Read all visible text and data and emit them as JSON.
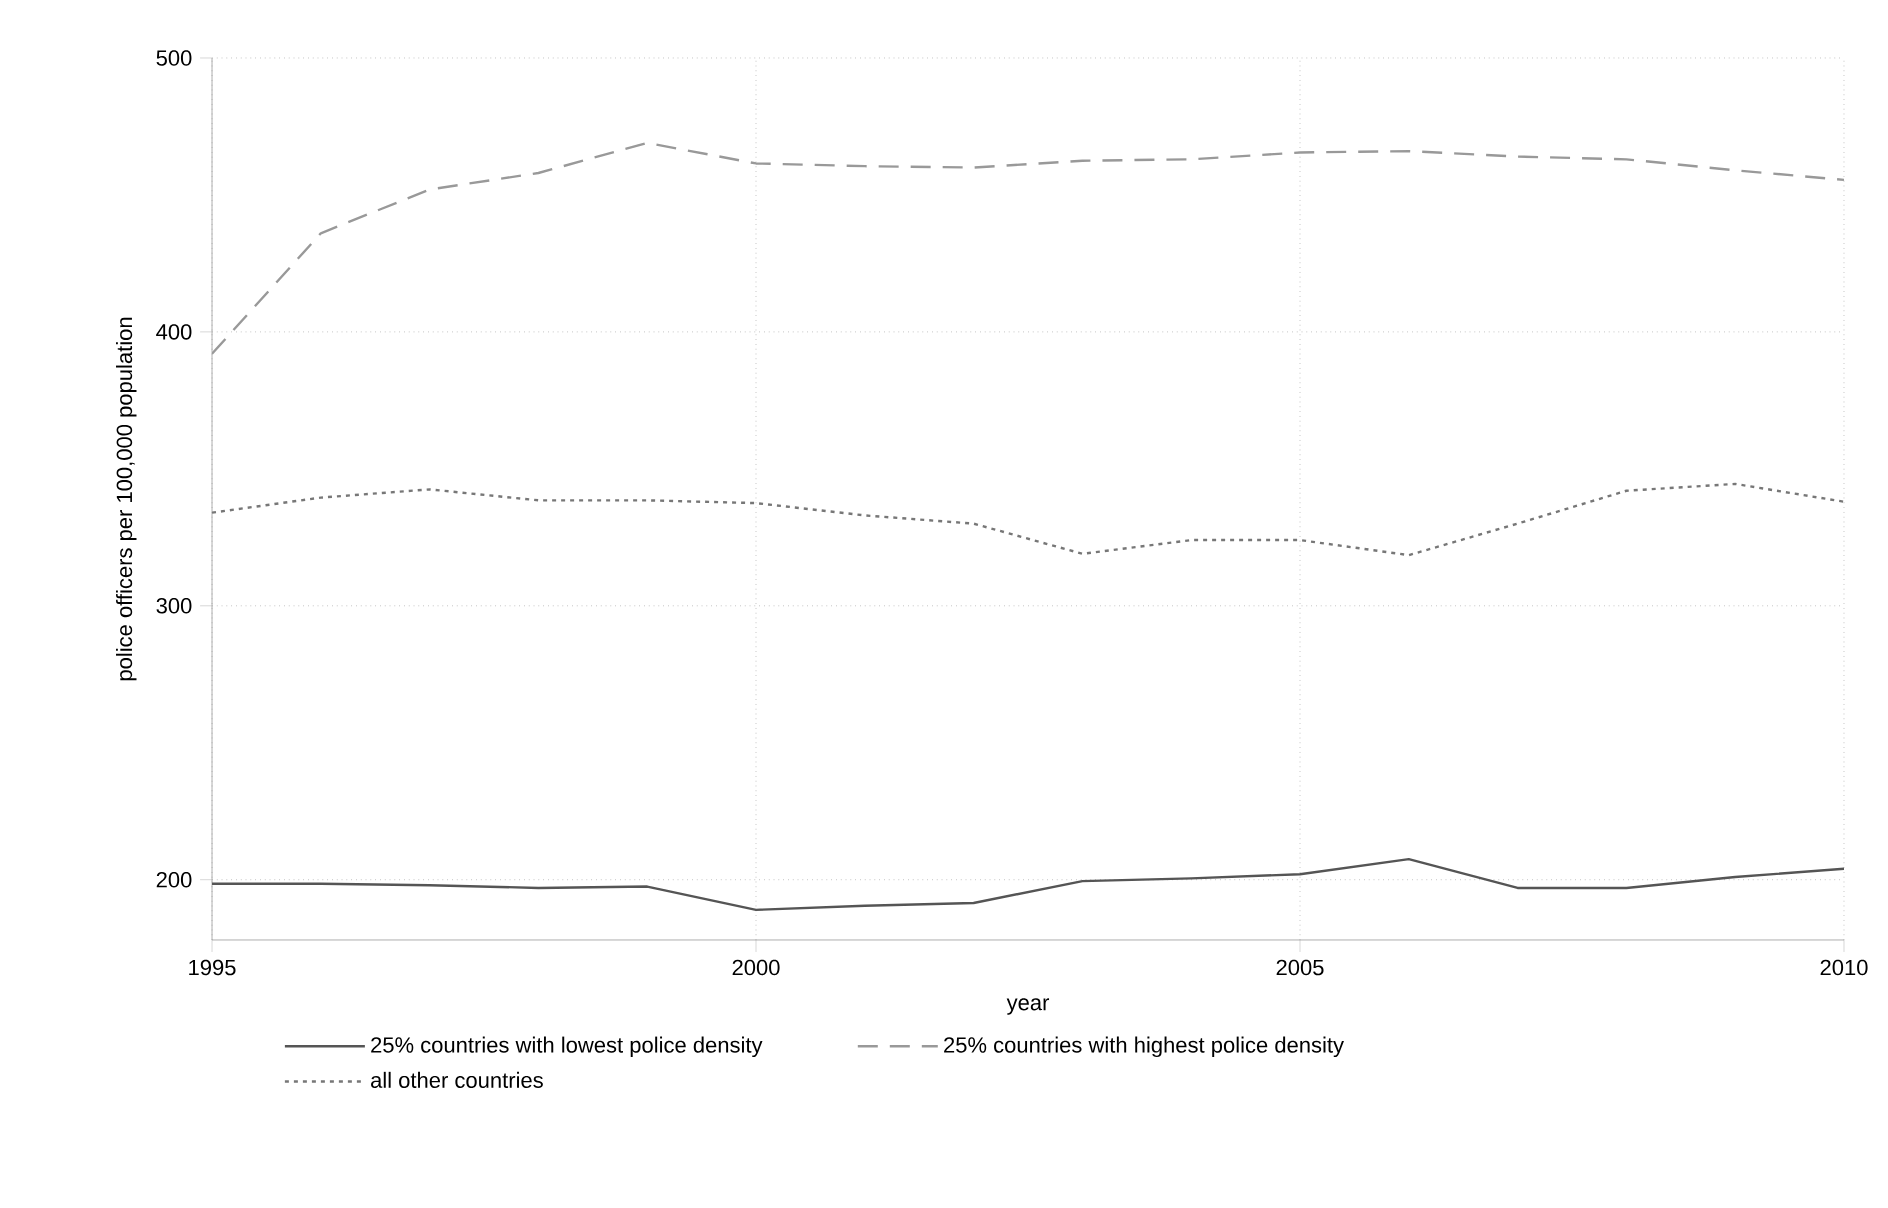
{
  "chart_data": {
    "type": "line",
    "xlabel": "year",
    "ylabel": "police officers per 100,000 population",
    "x": [
      1995,
      1996,
      1997,
      1998,
      1999,
      2000,
      2001,
      2002,
      2003,
      2004,
      2005,
      2006,
      2007,
      2008,
      2009,
      2010
    ],
    "series": [
      {
        "name": "25% countries with lowest police density",
        "color": "#555555",
        "line_style": "solid",
        "values": [
          198.5,
          198.5,
          198,
          197,
          197.5,
          189,
          190.5,
          191.5,
          199.5,
          200.5,
          202,
          207.5,
          197,
          197,
          201,
          204
        ]
      },
      {
        "name": "25% countries with highest police density",
        "color": "#999999",
        "line_style": "dashed",
        "values": [
          392,
          436,
          452,
          458,
          469,
          461.5,
          460.5,
          460,
          462.5,
          463,
          465.5,
          466,
          464,
          463,
          459,
          455.5
        ]
      },
      {
        "name": "all other countries",
        "color": "#777777",
        "line_style": "dotted",
        "values": [
          334,
          339.5,
          342.5,
          338.5,
          338.5,
          337.5,
          333,
          330,
          319,
          324,
          324,
          318.5,
          330,
          342,
          344.5,
          338
        ]
      }
    ],
    "xlim": [
      1995,
      2010
    ],
    "ylim": [
      178,
      500
    ],
    "xticks": [
      1995,
      2000,
      2005,
      2010
    ],
    "yticks": [
      200,
      300,
      400,
      500
    ],
    "grid": true,
    "legend": "bottom",
    "marker": "none"
  }
}
